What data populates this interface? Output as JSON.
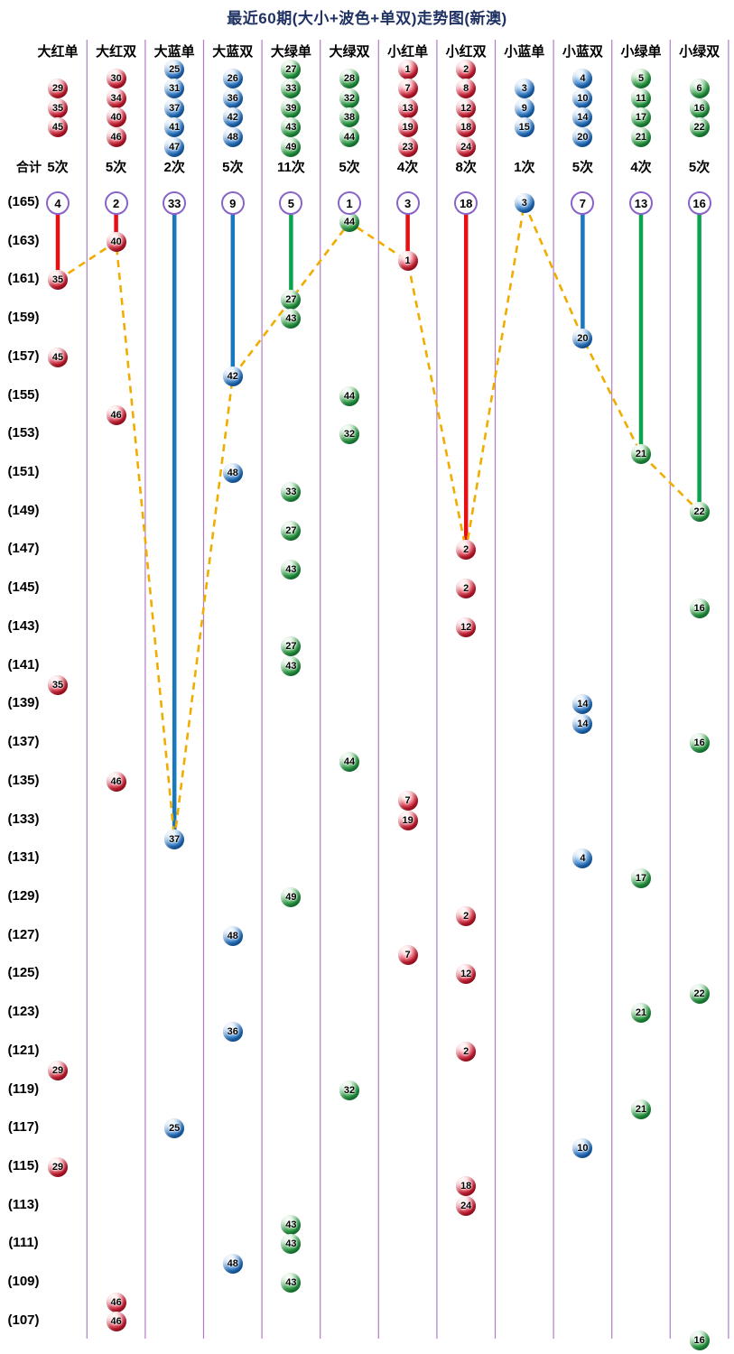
{
  "title": "最近60期(大小+波色+单双)走势图(新澳)",
  "colors": {
    "red": "#e50f14",
    "blue": "#1878be",
    "green": "#0aa34e",
    "dashed": "#f0ad00",
    "separator": "#b07cc6",
    "circle_border": "#8a63c9",
    "title": "#1f3263"
  },
  "chart_data": {
    "type": "scatter",
    "title": "最近60期(大小+波色+单双)走势图(新澳)",
    "summary_label": "合计",
    "legend_position": "top",
    "grid": "vertical-separators",
    "row_axis": {
      "top_value": 165,
      "bottom_value": 107,
      "step": 2,
      "labels": [
        "(165)",
        "(163)",
        "(161)",
        "(159)",
        "(157)",
        "(155)",
        "(153)",
        "(151)",
        "(149)",
        "(147)",
        "(145)",
        "(143)",
        "(141)",
        "(139)",
        "(137)",
        "(135)",
        "(133)",
        "(131)",
        "(129)",
        "(127)",
        "(125)",
        "(123)",
        "(121)",
        "(119)",
        "(117)",
        "(115)",
        "(113)",
        "(111)",
        "(109)",
        "(107)"
      ]
    },
    "columns": [
      {
        "label": "大红单",
        "color": "red",
        "legend_balls": [
          29,
          35,
          45
        ],
        "count": "5次",
        "marker": {
          "shape": "circle",
          "label": "4"
        },
        "points": [
          {
            "n": 35,
            "v": 161
          },
          {
            "n": 45,
            "v": 157
          },
          {
            "n": 35,
            "v": 140
          },
          {
            "n": 29,
            "v": 120
          },
          {
            "n": 29,
            "v": 115
          }
        ]
      },
      {
        "label": "大红双",
        "color": "red",
        "legend_balls": [
          30,
          34,
          40,
          46
        ],
        "count": "5次",
        "marker": {
          "shape": "circle",
          "label": "2"
        },
        "points": [
          {
            "n": 40,
            "v": 163
          },
          {
            "n": 46,
            "v": 154
          },
          {
            "n": 46,
            "v": 135
          },
          {
            "n": 46,
            "v": 108
          },
          {
            "n": 46,
            "v": 107
          }
        ]
      },
      {
        "label": "大蓝单",
        "color": "blue",
        "legend_balls": [
          25,
          31,
          37,
          41,
          47
        ],
        "count": "2次",
        "marker": {
          "shape": "circle",
          "label": "33"
        },
        "points": [
          {
            "n": 37,
            "v": 132
          },
          {
            "n": 25,
            "v": 117
          }
        ]
      },
      {
        "label": "大蓝双",
        "color": "blue",
        "legend_balls": [
          26,
          36,
          42,
          48
        ],
        "count": "5次",
        "marker": {
          "shape": "circle",
          "label": "9"
        },
        "points": [
          {
            "n": 42,
            "v": 156
          },
          {
            "n": 48,
            "v": 151
          },
          {
            "n": 48,
            "v": 127
          },
          {
            "n": 36,
            "v": 122
          },
          {
            "n": 48,
            "v": 110
          }
        ]
      },
      {
        "label": "大绿单",
        "color": "green",
        "legend_balls": [
          27,
          33,
          39,
          43,
          49
        ],
        "count": "11次",
        "marker": {
          "shape": "circle",
          "label": "5"
        },
        "points": [
          {
            "n": 27,
            "v": 160
          },
          {
            "n": 43,
            "v": 159
          },
          {
            "n": 33,
            "v": 150
          },
          {
            "n": 27,
            "v": 148
          },
          {
            "n": 43,
            "v": 146
          },
          {
            "n": 27,
            "v": 142
          },
          {
            "n": 43,
            "v": 141
          },
          {
            "n": 49,
            "v": 129
          },
          {
            "n": 43,
            "v": 112
          },
          {
            "n": 43,
            "v": 111
          },
          {
            "n": 43,
            "v": 109
          }
        ]
      },
      {
        "label": "大绿双",
        "color": "green",
        "legend_balls": [
          28,
          32,
          38,
          44
        ],
        "count": "5次",
        "marker": {
          "shape": "circle",
          "label": "1"
        },
        "points": [
          {
            "n": 44,
            "v": 164
          },
          {
            "n": 44,
            "v": 155
          },
          {
            "n": 32,
            "v": 153
          },
          {
            "n": 44,
            "v": 136
          },
          {
            "n": 32,
            "v": 119
          }
        ]
      },
      {
        "label": "小红单",
        "color": "red",
        "legend_balls": [
          1,
          7,
          13,
          19,
          23
        ],
        "count": "4次",
        "marker": {
          "shape": "circle",
          "label": "3"
        },
        "points": [
          {
            "n": 1,
            "v": 162
          },
          {
            "n": 7,
            "v": 134
          },
          {
            "n": 19,
            "v": 133
          },
          {
            "n": 7,
            "v": 126
          }
        ]
      },
      {
        "label": "小红双",
        "color": "red",
        "legend_balls": [
          2,
          8,
          12,
          18,
          24
        ],
        "count": "8次",
        "marker": {
          "shape": "circle",
          "label": "18"
        },
        "points": [
          {
            "n": 2,
            "v": 147
          },
          {
            "n": 2,
            "v": 145
          },
          {
            "n": 12,
            "v": 143
          },
          {
            "n": 2,
            "v": 128
          },
          {
            "n": 12,
            "v": 125
          },
          {
            "n": 2,
            "v": 121
          },
          {
            "n": 18,
            "v": 114
          },
          {
            "n": 24,
            "v": 113
          }
        ]
      },
      {
        "label": "小蓝单",
        "color": "blue",
        "legend_balls": [
          3,
          9,
          15
        ],
        "count": "1次",
        "marker": {
          "shape": "ball",
          "label": "3"
        },
        "points": [
          {
            "n": 3,
            "v": 165
          }
        ]
      },
      {
        "label": "小蓝双",
        "color": "blue",
        "legend_balls": [
          4,
          10,
          14,
          20
        ],
        "count": "5次",
        "marker": {
          "shape": "circle",
          "label": "7"
        },
        "points": [
          {
            "n": 20,
            "v": 158
          },
          {
            "n": 14,
            "v": 139
          },
          {
            "n": 14,
            "v": 138
          },
          {
            "n": 4,
            "v": 131
          },
          {
            "n": 10,
            "v": 116
          }
        ]
      },
      {
        "label": "小绿单",
        "color": "green",
        "legend_balls": [
          5,
          11,
          17,
          21
        ],
        "count": "4次",
        "marker": {
          "shape": "circle",
          "label": "13"
        },
        "points": [
          {
            "n": 21,
            "v": 152
          },
          {
            "n": 17,
            "v": 130
          },
          {
            "n": 21,
            "v": 123
          },
          {
            "n": 21,
            "v": 118
          }
        ]
      },
      {
        "label": "小绿双",
        "color": "green",
        "legend_balls": [
          6,
          16,
          22
        ],
        "count": "5次",
        "marker": {
          "shape": "circle",
          "label": "16"
        },
        "points": [
          {
            "n": 22,
            "v": 149
          },
          {
            "n": 16,
            "v": 144
          },
          {
            "n": 16,
            "v": 137
          },
          {
            "n": 22,
            "v": 124
          },
          {
            "n": 16,
            "v": 106
          }
        ]
      }
    ]
  }
}
